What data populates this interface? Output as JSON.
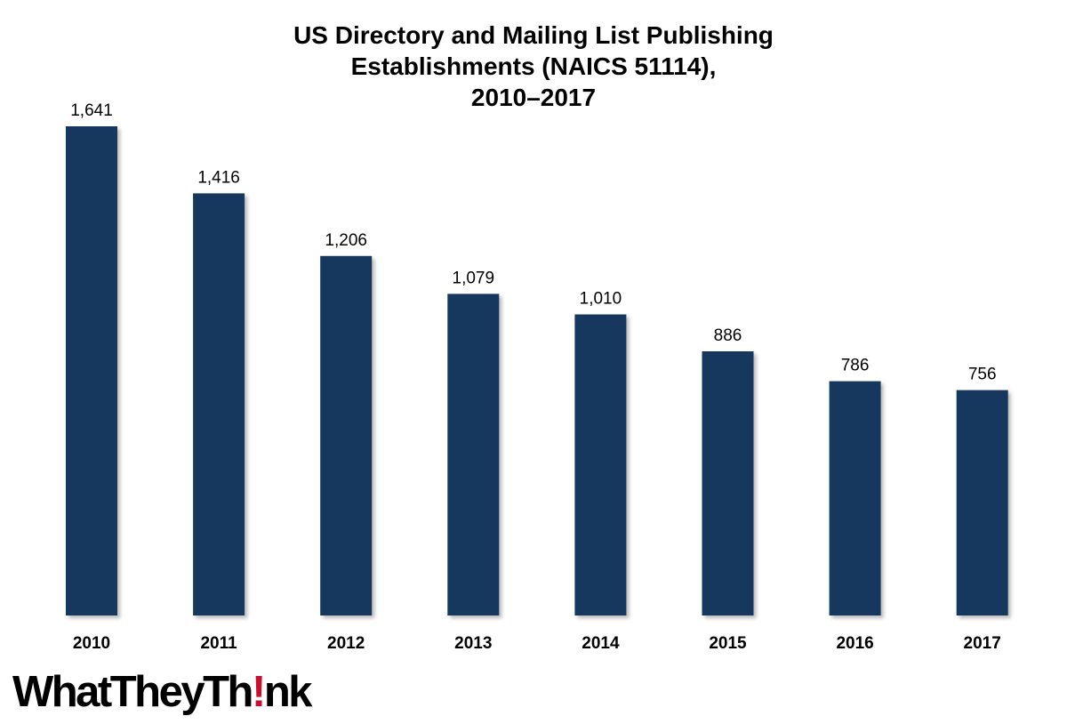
{
  "title_lines": [
    "US Directory and Mailing List Publishing",
    "Establishments (NAICS 51114),",
    "2010–2017"
  ],
  "chart_data": {
    "type": "bar",
    "title": "US Directory and Mailing List Publishing Establishments (NAICS 51114), 2010–2017",
    "categories": [
      "2010",
      "2011",
      "2012",
      "2013",
      "2014",
      "2015",
      "2016",
      "2017"
    ],
    "values": [
      1641,
      1416,
      1206,
      1079,
      1010,
      886,
      786,
      756
    ],
    "data_labels": [
      "1,641",
      "1,416",
      "1,206",
      "1,079",
      "1,010",
      "886",
      "786",
      "756"
    ],
    "ylim": [
      0,
      1641
    ],
    "grid": false,
    "y_axis_visible": false,
    "legend": "none",
    "bar_color": "#17375e"
  },
  "logo": {
    "text_before": "WhatTheyTh",
    "accent": "!",
    "text_after": "nk",
    "accent_color": "#c8102e"
  }
}
